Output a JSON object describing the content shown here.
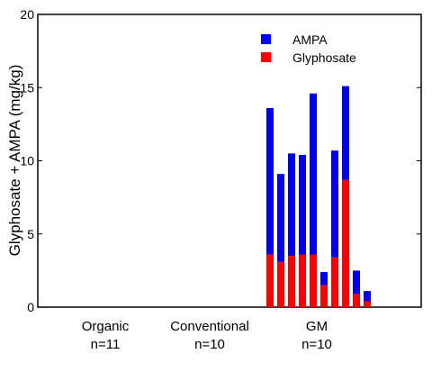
{
  "chart_data": {
    "type": "bar",
    "stacked": true,
    "ylabel": "Glyphosate + AMPA (mg/kg)",
    "ylim": [
      0,
      20
    ],
    "yticks": [
      "0",
      "5",
      "10",
      "15",
      "20"
    ],
    "groups": [
      {
        "label": "Organic",
        "n_label": "n=11",
        "values_glyphosate": [],
        "values_ampa": []
      },
      {
        "label": "Conventional",
        "n_label": "n=10",
        "values_glyphosate": [],
        "values_ampa": []
      },
      {
        "label": "GM",
        "n_label": "n=10",
        "values_glyphosate": [
          3.6,
          3.1,
          3.5,
          3.6,
          3.6,
          1.5,
          3.4,
          8.7,
          0.9,
          0.4
        ],
        "values_ampa": [
          10.0,
          6.0,
          7.0,
          6.8,
          11.0,
          0.9,
          7.3,
          6.4,
          1.6,
          0.7
        ]
      }
    ],
    "series": [
      {
        "name": "AMPA",
        "color": "#0000ee"
      },
      {
        "name": "Glyphosate",
        "color": "#ff0000"
      }
    ],
    "legend_position": "top-right",
    "grid": false
  }
}
